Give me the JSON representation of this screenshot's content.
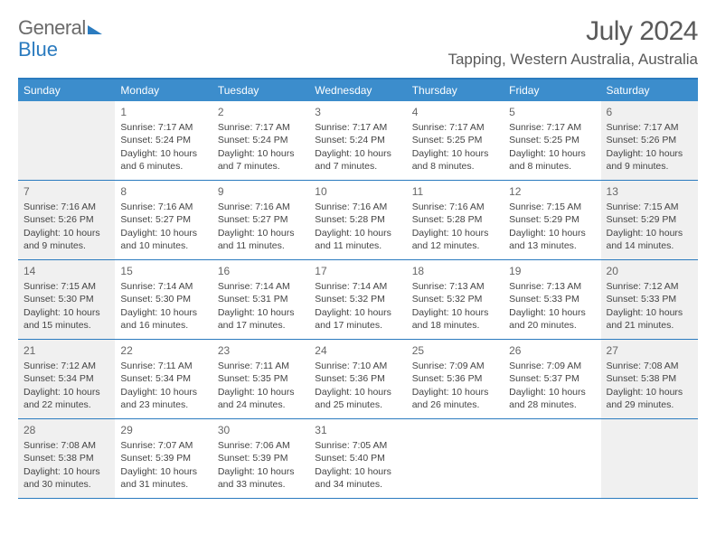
{
  "brand": {
    "part1": "General",
    "part2": "Blue"
  },
  "title": "July 2024",
  "location": "Tapping, Western Australia, Australia",
  "colors": {
    "header_bg": "#3c8dcc",
    "rule": "#2b7bbf",
    "shade": "#f0f0f0",
    "text": "#444444"
  },
  "day_headers": [
    "Sunday",
    "Monday",
    "Tuesday",
    "Wednesday",
    "Thursday",
    "Friday",
    "Saturday"
  ],
  "weeks": [
    [
      {
        "day": "",
        "shade": true
      },
      {
        "day": "1",
        "sunrise": "Sunrise: 7:17 AM",
        "sunset": "Sunset: 5:24 PM",
        "dl1": "Daylight: 10 hours",
        "dl2": "and 6 minutes."
      },
      {
        "day": "2",
        "sunrise": "Sunrise: 7:17 AM",
        "sunset": "Sunset: 5:24 PM",
        "dl1": "Daylight: 10 hours",
        "dl2": "and 7 minutes."
      },
      {
        "day": "3",
        "sunrise": "Sunrise: 7:17 AM",
        "sunset": "Sunset: 5:24 PM",
        "dl1": "Daylight: 10 hours",
        "dl2": "and 7 minutes."
      },
      {
        "day": "4",
        "sunrise": "Sunrise: 7:17 AM",
        "sunset": "Sunset: 5:25 PM",
        "dl1": "Daylight: 10 hours",
        "dl2": "and 8 minutes."
      },
      {
        "day": "5",
        "sunrise": "Sunrise: 7:17 AM",
        "sunset": "Sunset: 5:25 PM",
        "dl1": "Daylight: 10 hours",
        "dl2": "and 8 minutes."
      },
      {
        "day": "6",
        "shade": true,
        "sunrise": "Sunrise: 7:17 AM",
        "sunset": "Sunset: 5:26 PM",
        "dl1": "Daylight: 10 hours",
        "dl2": "and 9 minutes."
      }
    ],
    [
      {
        "day": "7",
        "shade": true,
        "sunrise": "Sunrise: 7:16 AM",
        "sunset": "Sunset: 5:26 PM",
        "dl1": "Daylight: 10 hours",
        "dl2": "and 9 minutes."
      },
      {
        "day": "8",
        "sunrise": "Sunrise: 7:16 AM",
        "sunset": "Sunset: 5:27 PM",
        "dl1": "Daylight: 10 hours",
        "dl2": "and 10 minutes."
      },
      {
        "day": "9",
        "sunrise": "Sunrise: 7:16 AM",
        "sunset": "Sunset: 5:27 PM",
        "dl1": "Daylight: 10 hours",
        "dl2": "and 11 minutes."
      },
      {
        "day": "10",
        "sunrise": "Sunrise: 7:16 AM",
        "sunset": "Sunset: 5:28 PM",
        "dl1": "Daylight: 10 hours",
        "dl2": "and 11 minutes."
      },
      {
        "day": "11",
        "sunrise": "Sunrise: 7:16 AM",
        "sunset": "Sunset: 5:28 PM",
        "dl1": "Daylight: 10 hours",
        "dl2": "and 12 minutes."
      },
      {
        "day": "12",
        "sunrise": "Sunrise: 7:15 AM",
        "sunset": "Sunset: 5:29 PM",
        "dl1": "Daylight: 10 hours",
        "dl2": "and 13 minutes."
      },
      {
        "day": "13",
        "shade": true,
        "sunrise": "Sunrise: 7:15 AM",
        "sunset": "Sunset: 5:29 PM",
        "dl1": "Daylight: 10 hours",
        "dl2": "and 14 minutes."
      }
    ],
    [
      {
        "day": "14",
        "shade": true,
        "sunrise": "Sunrise: 7:15 AM",
        "sunset": "Sunset: 5:30 PM",
        "dl1": "Daylight: 10 hours",
        "dl2": "and 15 minutes."
      },
      {
        "day": "15",
        "sunrise": "Sunrise: 7:14 AM",
        "sunset": "Sunset: 5:30 PM",
        "dl1": "Daylight: 10 hours",
        "dl2": "and 16 minutes."
      },
      {
        "day": "16",
        "sunrise": "Sunrise: 7:14 AM",
        "sunset": "Sunset: 5:31 PM",
        "dl1": "Daylight: 10 hours",
        "dl2": "and 17 minutes."
      },
      {
        "day": "17",
        "sunrise": "Sunrise: 7:14 AM",
        "sunset": "Sunset: 5:32 PM",
        "dl1": "Daylight: 10 hours",
        "dl2": "and 17 minutes."
      },
      {
        "day": "18",
        "sunrise": "Sunrise: 7:13 AM",
        "sunset": "Sunset: 5:32 PM",
        "dl1": "Daylight: 10 hours",
        "dl2": "and 18 minutes."
      },
      {
        "day": "19",
        "sunrise": "Sunrise: 7:13 AM",
        "sunset": "Sunset: 5:33 PM",
        "dl1": "Daylight: 10 hours",
        "dl2": "and 20 minutes."
      },
      {
        "day": "20",
        "shade": true,
        "sunrise": "Sunrise: 7:12 AM",
        "sunset": "Sunset: 5:33 PM",
        "dl1": "Daylight: 10 hours",
        "dl2": "and 21 minutes."
      }
    ],
    [
      {
        "day": "21",
        "shade": true,
        "sunrise": "Sunrise: 7:12 AM",
        "sunset": "Sunset: 5:34 PM",
        "dl1": "Daylight: 10 hours",
        "dl2": "and 22 minutes."
      },
      {
        "day": "22",
        "sunrise": "Sunrise: 7:11 AM",
        "sunset": "Sunset: 5:34 PM",
        "dl1": "Daylight: 10 hours",
        "dl2": "and 23 minutes."
      },
      {
        "day": "23",
        "sunrise": "Sunrise: 7:11 AM",
        "sunset": "Sunset: 5:35 PM",
        "dl1": "Daylight: 10 hours",
        "dl2": "and 24 minutes."
      },
      {
        "day": "24",
        "sunrise": "Sunrise: 7:10 AM",
        "sunset": "Sunset: 5:36 PM",
        "dl1": "Daylight: 10 hours",
        "dl2": "and 25 minutes."
      },
      {
        "day": "25",
        "sunrise": "Sunrise: 7:09 AM",
        "sunset": "Sunset: 5:36 PM",
        "dl1": "Daylight: 10 hours",
        "dl2": "and 26 minutes."
      },
      {
        "day": "26",
        "sunrise": "Sunrise: 7:09 AM",
        "sunset": "Sunset: 5:37 PM",
        "dl1": "Daylight: 10 hours",
        "dl2": "and 28 minutes."
      },
      {
        "day": "27",
        "shade": true,
        "sunrise": "Sunrise: 7:08 AM",
        "sunset": "Sunset: 5:38 PM",
        "dl1": "Daylight: 10 hours",
        "dl2": "and 29 minutes."
      }
    ],
    [
      {
        "day": "28",
        "shade": true,
        "sunrise": "Sunrise: 7:08 AM",
        "sunset": "Sunset: 5:38 PM",
        "dl1": "Daylight: 10 hours",
        "dl2": "and 30 minutes."
      },
      {
        "day": "29",
        "sunrise": "Sunrise: 7:07 AM",
        "sunset": "Sunset: 5:39 PM",
        "dl1": "Daylight: 10 hours",
        "dl2": "and 31 minutes."
      },
      {
        "day": "30",
        "sunrise": "Sunrise: 7:06 AM",
        "sunset": "Sunset: 5:39 PM",
        "dl1": "Daylight: 10 hours",
        "dl2": "and 33 minutes."
      },
      {
        "day": "31",
        "sunrise": "Sunrise: 7:05 AM",
        "sunset": "Sunset: 5:40 PM",
        "dl1": "Daylight: 10 hours",
        "dl2": "and 34 minutes."
      },
      {
        "day": ""
      },
      {
        "day": ""
      },
      {
        "day": "",
        "shade": true
      }
    ]
  ]
}
